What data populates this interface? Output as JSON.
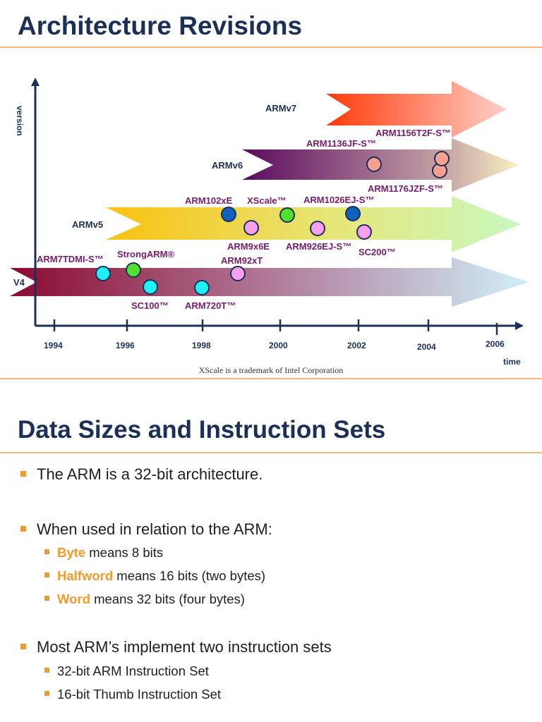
{
  "slide1": {
    "title": "Architecture Revisions",
    "footnote": "XScale is a trademark of Intel Corporation",
    "axis": {
      "y_label": "version",
      "x_label": "time",
      "years": [
        "1994",
        "1996",
        "1998",
        "2000",
        "2002",
        "2004",
        "2006"
      ]
    },
    "versions": [
      "ARMv7",
      "ARMv6",
      "ARMv5",
      "V4"
    ],
    "cores": [
      "ARM1156T2F-S™",
      "ARM1136JF-S™",
      "ARM1176JZF-S™",
      "ARM102xE",
      "XScale™",
      "ARM1026EJ-S™",
      "ARM9x6E",
      "ARM926EJ-S™",
      "SC200™",
      "ARM7TDMI-S™",
      "StrongARM®",
      "ARM92xT",
      "SC100™",
      "ARM720T™"
    ],
    "colors": {
      "title": "#1b2f57",
      "accent": "#f39a2a",
      "core_label": "#7a1a6e"
    }
  },
  "slide2": {
    "title": "Data Sizes and Instruction Sets",
    "b1": "The ARM is a 32-bit architecture.",
    "b2": "When used in relation to the ARM:",
    "b2_sub": [
      {
        "term": "Byte",
        "rest": " means 8 bits"
      },
      {
        "term": "Halfword",
        "rest": " means 16 bits (two bytes)"
      },
      {
        "term": "Word",
        "rest": " means 32 bits (four bytes)"
      }
    ],
    "b3": "Most ARM’s implement two instruction sets",
    "b3_sub": [
      "32-bit ARM Instruction Set",
      "16-bit Thumb Instruction Set"
    ]
  }
}
